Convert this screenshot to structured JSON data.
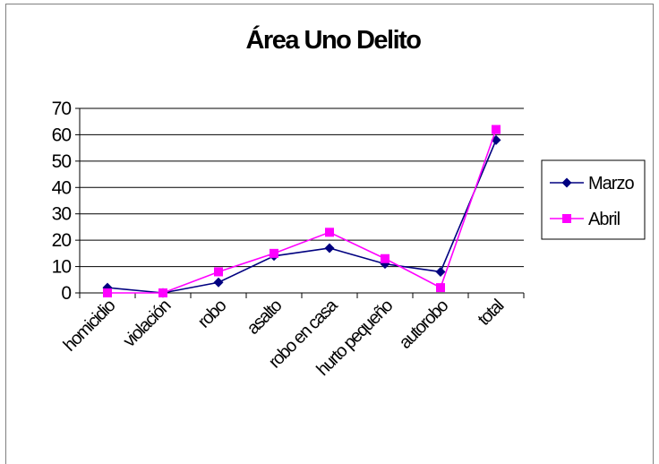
{
  "chart_data": {
    "type": "line",
    "title": "Área Uno Delito",
    "categories": [
      "homicidio",
      "violación",
      "robo",
      "asalto",
      "robo en casa",
      "hurto pequeño",
      "autorobo",
      "total"
    ],
    "series": [
      {
        "name": "Marzo",
        "values": [
          2,
          0,
          4,
          14,
          17,
          11,
          8,
          58
        ],
        "color": "#000080",
        "marker": "diamond"
      },
      {
        "name": "Abril",
        "values": [
          0,
          0,
          8,
          15,
          23,
          13,
          2,
          62
        ],
        "color": "#ff00ff",
        "marker": "square"
      }
    ],
    "ylim": [
      0,
      70
    ],
    "yticks": [
      "0",
      "10",
      "20",
      "30",
      "40",
      "50",
      "60",
      "70"
    ],
    "grid": true,
    "legend": "right"
  }
}
